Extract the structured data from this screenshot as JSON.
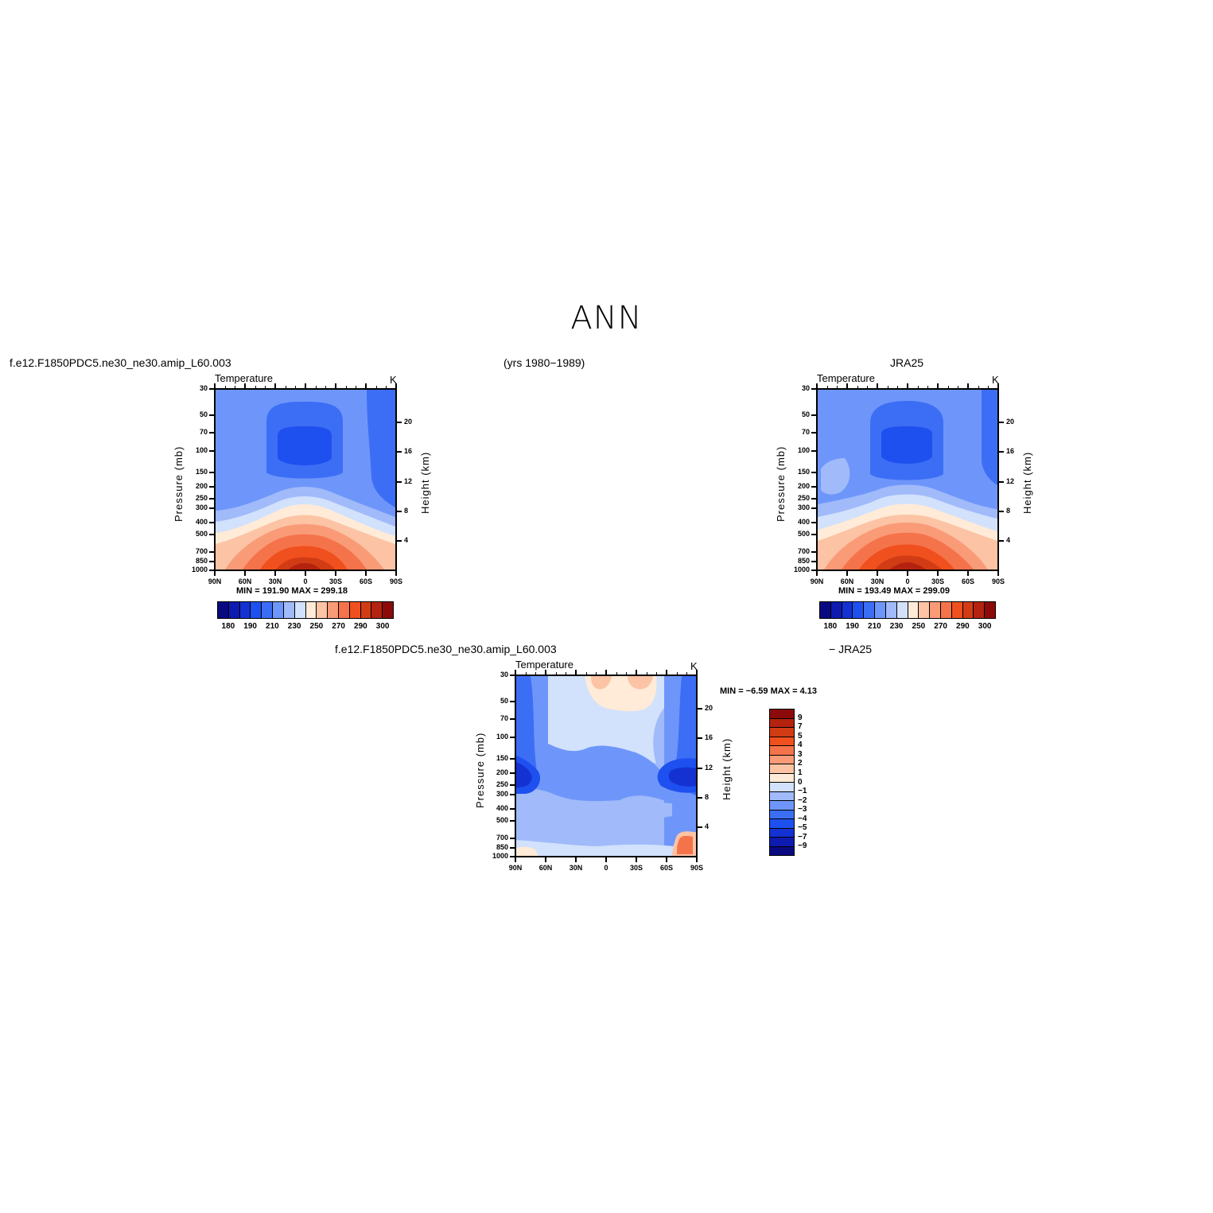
{
  "figure": {
    "title": "ANN",
    "years": "(yrs 1980−1989)"
  },
  "panel_model": {
    "header": "f.e12.F1850PDC5.ne30_ne30.amip_L60.003",
    "variable": "Temperature",
    "units": "K",
    "minmax": "MIN =  191.90   MAX =  299.18"
  },
  "panel_obs": {
    "header": "JRA25",
    "variable": "Temperature",
    "units": "K",
    "minmax": "MIN =  193.49   MAX =  299.09"
  },
  "panel_diff": {
    "header_left": "f.e12.F1850PDC5.ne30_ne30.amip_L60.003",
    "header_right": "− JRA25",
    "variable": "Temperature",
    "units": "K",
    "minmax": "MIN =   −6.59   MAX =    4.13"
  },
  "axes": {
    "ylabel_left": "Pressure (mb)",
    "ylabel_right": "Height (km)",
    "pressure_ticks": [
      "30",
      "50",
      "70",
      "100",
      "150",
      "200",
      "250",
      "300",
      "400",
      "500",
      "700",
      "850",
      "1000"
    ],
    "height_ticks": [
      "20",
      "16",
      "12",
      "8",
      "4"
    ],
    "lat_ticks": [
      "90N",
      "60N",
      "30N",
      "0",
      "30S",
      "60S",
      "90S"
    ]
  },
  "colorbars": {
    "abs_labels": [
      "180",
      "190",
      "210",
      "230",
      "250",
      "270",
      "290",
      "300"
    ],
    "abs_colors": [
      "#0a0a80",
      "#0d1bb0",
      "#1432d2",
      "#1e50f0",
      "#3c6ef5",
      "#6e96fa",
      "#a0bafa",
      "#d2e1fc",
      "#ffebd7",
      "#fcc3a5",
      "#fa9b78",
      "#f5734b",
      "#f0501e",
      "#d23c14",
      "#b4230f",
      "#8c0a0a"
    ],
    "diff_labels": [
      "9",
      "7",
      "5",
      "4",
      "3",
      "2",
      "1",
      "0",
      "−1",
      "−2",
      "−3",
      "−4",
      "−5",
      "−7",
      "−9"
    ],
    "diff_colors": [
      "#8c0a0a",
      "#b4230f",
      "#d23c14",
      "#f0501e",
      "#f5734b",
      "#fa9b78",
      "#fcc3a5",
      "#ffebd7",
      "#d2e1fc",
      "#a0bafa",
      "#6e96fa",
      "#3c6ef5",
      "#1e50f0",
      "#1432d2",
      "#0d1bb0",
      "#0a0a80"
    ]
  },
  "chart_data": [
    {
      "type": "heatmap",
      "name": "f.e12.F1850PDC5.ne30_ne30.amip_L60.003",
      "title": "Temperature",
      "units": "K",
      "xlabel": "",
      "ylabel": "Pressure (mb)",
      "y2label": "Height (km)",
      "x": [
        90,
        60,
        30,
        0,
        -30,
        -60,
        -90
      ],
      "y_pressure": [
        30,
        50,
        70,
        100,
        150,
        200,
        250,
        300,
        400,
        500,
        700,
        850,
        1000
      ],
      "levels": [
        180,
        185,
        190,
        200,
        210,
        220,
        230,
        240,
        250,
        260,
        270,
        280,
        290,
        295,
        300
      ],
      "min": 191.9,
      "max": 299.18
    },
    {
      "type": "heatmap",
      "name": "JRA25",
      "title": "Temperature",
      "units": "K",
      "xlabel": "",
      "ylabel": "Pressure (mb)",
      "y2label": "Height (km)",
      "x": [
        90,
        60,
        30,
        0,
        -30,
        -60,
        -90
      ],
      "y_pressure": [
        30,
        50,
        70,
        100,
        150,
        200,
        250,
        300,
        400,
        500,
        700,
        850,
        1000
      ],
      "levels": [
        180,
        185,
        190,
        200,
        210,
        220,
        230,
        240,
        250,
        260,
        270,
        280,
        290,
        295,
        300
      ],
      "min": 193.49,
      "max": 299.09
    },
    {
      "type": "heatmap",
      "name": "f.e12.F1850PDC5.ne30_ne30.amip_L60.003 − JRA25",
      "title": "Temperature",
      "units": "K",
      "xlabel": "",
      "ylabel": "Pressure (mb)",
      "y2label": "Height (km)",
      "x": [
        90,
        60,
        30,
        0,
        -30,
        -60,
        -90
      ],
      "y_pressure": [
        30,
        50,
        70,
        100,
        150,
        200,
        250,
        300,
        400,
        500,
        700,
        850,
        1000
      ],
      "levels": [
        -9,
        -7,
        -5,
        -4,
        -3,
        -2,
        -1,
        0,
        1,
        2,
        3,
        4,
        5,
        7,
        9
      ],
      "min": -6.59,
      "max": 4.13
    }
  ]
}
